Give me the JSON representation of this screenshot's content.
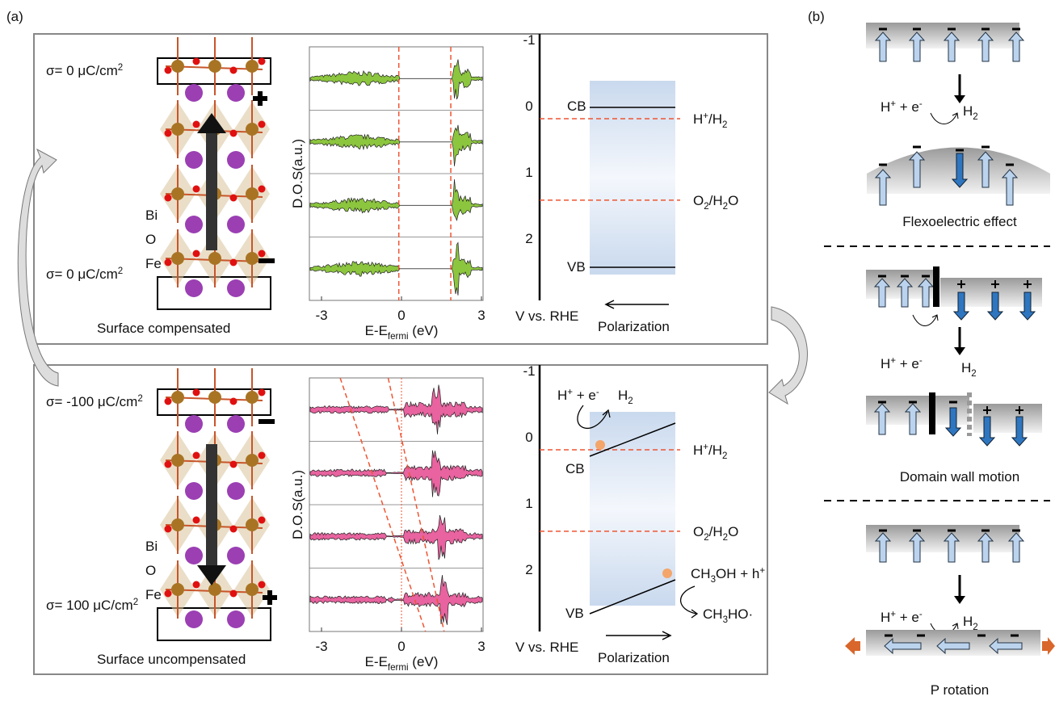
{
  "panel_labels": {
    "a": "(a)",
    "b": "(b)"
  },
  "rows": [
    {
      "sigma_top": [
        "σ= 0 μC/cm",
        {
          "sup": "2"
        }
      ],
      "sigma_bottom": [
        "σ= 0 μC/cm",
        {
          "sup": "2"
        }
      ],
      "elements": [
        "Bi",
        "O",
        "Fe"
      ],
      "caption": "Surface compensated",
      "dos": {
        "ylabel": "D.O.S(a.u.)",
        "xlabel": [
          "E-E",
          {
            "sub": "fermi"
          },
          " (eV)"
        ],
        "xticks": [
          -3,
          0,
          3
        ]
      },
      "energy": {
        "ticks": [
          -1,
          0,
          1,
          2
        ],
        "axis_label": "V vs. RHE",
        "polarization": "Polarization",
        "cb": "CB",
        "vb": "VB",
        "levels": [
          [
            "H",
            {
              "sup": "+"
            },
            "/H",
            {
              "sub": "2"
            }
          ],
          [
            "O",
            {
              "sub": "2"
            },
            "/H",
            {
              "sub": "2"
            },
            "O"
          ]
        ]
      }
    },
    {
      "sigma_top": [
        "σ= -100 μC/cm",
        {
          "sup": "2"
        }
      ],
      "sigma_bottom": [
        "σ= 100 μC/cm",
        {
          "sup": "2"
        }
      ],
      "elements": [
        "Bi",
        "O",
        "Fe"
      ],
      "caption": "Surface uncompensated",
      "dos": {
        "ylabel": "D.O.S(a.u.)",
        "xlabel": [
          "E-E",
          {
            "sub": "fermi"
          },
          " (eV)"
        ],
        "xticks": [
          -3,
          0,
          3
        ]
      },
      "energy": {
        "ticks": [
          -1,
          0,
          1,
          2
        ],
        "axis_label": "V vs. RHE",
        "polarization": "Polarization",
        "cb": "CB",
        "vb": "VB",
        "levels": [
          [
            "H",
            {
              "sup": "+"
            },
            "/H",
            {
              "sub": "2"
            }
          ],
          [
            "O",
            {
              "sub": "2"
            },
            "/H",
            {
              "sub": "2"
            },
            "O"
          ]
        ],
        "reaction": [
          "H",
          {
            "sup": "+"
          },
          " + e",
          {
            "sup": "-"
          }
        ],
        "product": [
          "H",
          {
            "sub": "2"
          }
        ],
        "oxidation": [
          "CH",
          {
            "sub": "3"
          },
          "OH + h",
          {
            "sup": "+"
          }
        ],
        "oxidation_product": [
          "CH",
          {
            "sub": "3"
          },
          "HO·"
        ]
      }
    }
  ],
  "panel_b": {
    "sections": [
      {
        "reaction": [
          "H",
          {
            "sup": "+"
          },
          " + e",
          {
            "sup": "-"
          }
        ],
        "product": [
          "H",
          {
            "sub": "2"
          }
        ],
        "caption": "Flexoelectric effect"
      },
      {
        "reaction": [
          "H",
          {
            "sup": "+"
          },
          " + e",
          {
            "sup": "-"
          }
        ],
        "product": [
          "H",
          {
            "sub": "2"
          }
        ],
        "caption": "Domain  wall motion"
      },
      {
        "reaction": [
          "H",
          {
            "sup": "+"
          },
          " + e",
          {
            "sup": "-"
          }
        ],
        "product": [
          "H",
          {
            "sub": "2"
          }
        ],
        "caption": "P rotation"
      }
    ]
  }
}
